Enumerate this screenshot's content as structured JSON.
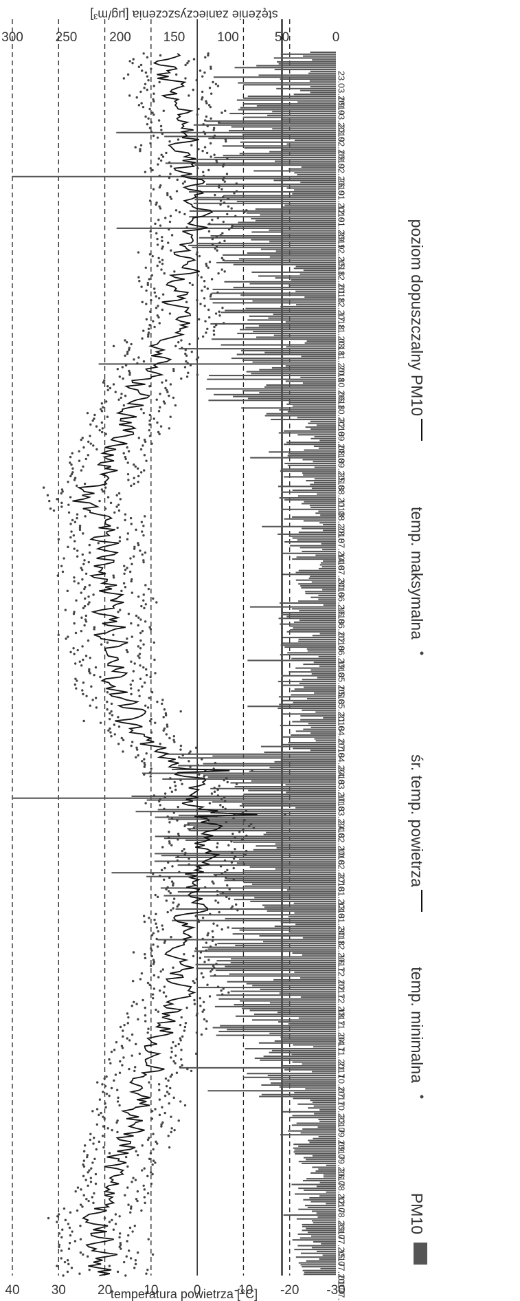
{
  "chart_data": {
    "type": "bar+line+scatter",
    "orientation": "rotated-90-clockwise",
    "x_tick_labels": [
      "01.07.2017",
      "15.07.2017",
      "29.07.2017",
      "12.08.2017",
      "26.08.2017",
      "09.09.2017",
      "23.09.2017",
      "07.10.2017",
      "21.10.2017",
      "04.11.2017",
      "18.11.2017",
      "02.12.2017",
      "16.12.2017",
      "30.12.2017",
      "13.01.2018",
      "27.01.2018",
      "10.02.2018",
      "24.02.2018",
      "10.03.2018",
      "24.03.2018",
      "07.04.2018",
      "21.04.2018",
      "05.05.2018",
      "19.05.2018",
      "02.06.2018",
      "16.06.2018",
      "30.06.2018",
      "14.07.2018",
      "28.07.2018",
      "11.08.2018",
      "25.08.2018",
      "08.09.2018",
      "22.09.2018",
      "06.10.2018",
      "20.10.2018",
      "03.11.2018",
      "17.11.2018",
      "01.12.2018",
      "15.12.2018",
      "29.12.2018",
      "12.01.2019",
      "26.01.2019",
      "09.02.2019",
      "23.02.2019",
      "09.03.2019",
      "23.03.2019"
    ],
    "x_tick_every_days": 14,
    "days": 640,
    "left_axis": {
      "label": "temperatura powietrza [°C]",
      "ticks": [
        -30,
        -20,
        -10,
        0,
        10,
        20,
        30,
        40
      ],
      "range": [
        -30,
        40
      ]
    },
    "right_axis": {
      "label": "stężenie zanieczyszczenia [μg/m³]",
      "ticks": [
        0,
        50,
        100,
        150,
        200,
        250,
        300
      ],
      "range": [
        0,
        300
      ]
    },
    "permissible_level_pm10": 50,
    "temp_gridlines_dashed": [
      -20,
      -10,
      10,
      20,
      30,
      40
    ],
    "temp_gridline_solid": 0,
    "legend": [
      "PM10",
      "temp. minimalna",
      "śr. temp. powietrza",
      "temp. maksymalna",
      "poziom dopuszczalny PM10"
    ],
    "legend_position": "bottom",
    "series": [
      {
        "name": "PM10",
        "kind": "bar",
        "axis": "right",
        "color": "#555555",
        "period_means": [
          {
            "from": "01.07.2017",
            "to": "31.08.2017",
            "value": 25
          },
          {
            "from": "01.09.2017",
            "to": "30.09.2017",
            "value": 32
          },
          {
            "from": "01.10.2017",
            "to": "31.10.2017",
            "value": 55
          },
          {
            "from": "01.11.2017",
            "to": "31.12.2017",
            "value": 80
          },
          {
            "from": "01.01.2018",
            "to": "31.03.2018",
            "value": 105
          },
          {
            "from": "01.04.2018",
            "to": "31.08.2018",
            "value": 33
          },
          {
            "from": "01.09.2018",
            "to": "30.09.2018",
            "value": 40
          },
          {
            "from": "01.10.2018",
            "to": "30.11.2018",
            "value": 75
          },
          {
            "from": "01.12.2018",
            "to": "28.02.2019",
            "value": 85
          },
          {
            "from": "01.03.2019",
            "to": "31.03.2019",
            "value": 60
          }
        ],
        "peaks": [
          {
            "date": "07.03.2018",
            "value": 300
          },
          {
            "date": "26.01.2019",
            "value": 300
          },
          {
            "date": "20.10.2018",
            "value": 220
          },
          {
            "date": "27.01.2018",
            "value": 208
          },
          {
            "date": "17.10.2017",
            "value": 145
          }
        ]
      },
      {
        "name": "śr. temp. powietrza",
        "kind": "line",
        "axis": "left",
        "color": "#111111",
        "monthly_means": [
          {
            "month": "07.2017",
            "value": 20.5
          },
          {
            "month": "08.2017",
            "value": 20.0
          },
          {
            "month": "09.2017",
            "value": 14.5
          },
          {
            "month": "10.2017",
            "value": 10.5
          },
          {
            "month": "11.2017",
            "value": 5.5
          },
          {
            "month": "12.2017",
            "value": 2.5
          },
          {
            "month": "01.2018",
            "value": 1.5
          },
          {
            "month": "02.2018",
            "value": -2.5
          },
          {
            "month": "03.2018",
            "value": 1.5
          },
          {
            "month": "04.2018",
            "value": 14.5
          },
          {
            "month": "05.2018",
            "value": 17.5
          },
          {
            "month": "06.2018",
            "value": 19.0
          },
          {
            "month": "07.2018",
            "value": 21.0
          },
          {
            "month": "08.2018",
            "value": 21.5
          },
          {
            "month": "09.2018",
            "value": 16.5
          },
          {
            "month": "10.2018",
            "value": 11.0
          },
          {
            "month": "11.2018",
            "value": 4.5
          },
          {
            "month": "12.2018",
            "value": 1.5
          },
          {
            "month": "01.2019",
            "value": -0.5
          },
          {
            "month": "02.2019",
            "value": 3.0
          },
          {
            "month": "03.2019",
            "value": 6.0
          }
        ],
        "extremes": [
          {
            "date": "27.02.2018",
            "value": -13
          },
          {
            "date": "22.03.2018",
            "value": -7
          },
          {
            "date": "10.08.2018",
            "value": 27
          }
        ]
      },
      {
        "name": "temp. minimalna",
        "kind": "scatter",
        "axis": "left",
        "color": "#444444",
        "offset_from_mean": -6
      },
      {
        "name": "temp. maksymalna",
        "kind": "scatter",
        "axis": "left",
        "color": "#444444",
        "offset_from_mean": 6
      },
      {
        "name": "poziom dopuszczalny PM10",
        "kind": "line",
        "axis": "right",
        "value": 50,
        "color": "#111111"
      }
    ]
  }
}
